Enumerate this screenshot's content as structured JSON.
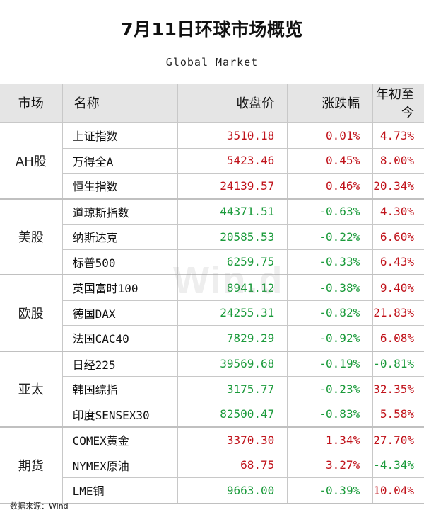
{
  "title": "7月11日环球市场概览",
  "subtitle": "Global Market",
  "headers": {
    "market": "市场",
    "name": "名称",
    "close": "收盘价",
    "change": "涨跌幅",
    "ytd": "年初至今"
  },
  "groups": [
    {
      "market": "AH股",
      "rows": [
        {
          "name": "上证指数",
          "close": "3510.18",
          "change": "0.01%",
          "ytd": "4.73%",
          "close_dir": "up",
          "change_dir": "up",
          "ytd_dir": "up"
        },
        {
          "name": "万得全A",
          "close": "5423.46",
          "change": "0.45%",
          "ytd": "8.00%",
          "close_dir": "up",
          "change_dir": "up",
          "ytd_dir": "up"
        },
        {
          "name": "恒生指数",
          "close": "24139.57",
          "change": "0.46%",
          "ytd": "20.34%",
          "close_dir": "up",
          "change_dir": "up",
          "ytd_dir": "up"
        }
      ]
    },
    {
      "market": "美股",
      "rows": [
        {
          "name": "道琼斯指数",
          "close": "44371.51",
          "change": "-0.63%",
          "ytd": "4.30%",
          "close_dir": "down",
          "change_dir": "down",
          "ytd_dir": "up"
        },
        {
          "name": "纳斯达克",
          "close": "20585.53",
          "change": "-0.22%",
          "ytd": "6.60%",
          "close_dir": "down",
          "change_dir": "down",
          "ytd_dir": "up"
        },
        {
          "name": "标普500",
          "close": "6259.75",
          "change": "-0.33%",
          "ytd": "6.43%",
          "close_dir": "down",
          "change_dir": "down",
          "ytd_dir": "up"
        }
      ]
    },
    {
      "market": "欧股",
      "rows": [
        {
          "name": "英国富时100",
          "close": "8941.12",
          "change": "-0.38%",
          "ytd": "9.40%",
          "close_dir": "down",
          "change_dir": "down",
          "ytd_dir": "up"
        },
        {
          "name": "德国DAX",
          "close": "24255.31",
          "change": "-0.82%",
          "ytd": "21.83%",
          "close_dir": "down",
          "change_dir": "down",
          "ytd_dir": "up"
        },
        {
          "name": "法国CAC40",
          "close": "7829.29",
          "change": "-0.92%",
          "ytd": "6.08%",
          "close_dir": "down",
          "change_dir": "down",
          "ytd_dir": "up"
        }
      ]
    },
    {
      "market": "亚太",
      "rows": [
        {
          "name": "日经225",
          "close": "39569.68",
          "change": "-0.19%",
          "ytd": "-0.81%",
          "close_dir": "down",
          "change_dir": "down",
          "ytd_dir": "down"
        },
        {
          "name": "韩国综指",
          "close": "3175.77",
          "change": "-0.23%",
          "ytd": "32.35%",
          "close_dir": "down",
          "change_dir": "down",
          "ytd_dir": "up"
        },
        {
          "name": "印度SENSEX30",
          "close": "82500.47",
          "change": "-0.83%",
          "ytd": "5.58%",
          "close_dir": "down",
          "change_dir": "down",
          "ytd_dir": "up"
        }
      ]
    },
    {
      "market": "期货",
      "rows": [
        {
          "name": "COMEX黄金",
          "close": "3370.30",
          "change": "1.34%",
          "ytd": "27.70%",
          "close_dir": "up",
          "change_dir": "up",
          "ytd_dir": "up"
        },
        {
          "name": "NYMEX原油",
          "close": "68.75",
          "change": "3.27%",
          "ytd": "-4.34%",
          "close_dir": "up",
          "change_dir": "up",
          "ytd_dir": "down"
        },
        {
          "name": "LME铜",
          "close": "9663.00",
          "change": "-0.39%",
          "ytd": "10.04%",
          "close_dir": "down",
          "change_dir": "down",
          "ytd_dir": "up"
        }
      ]
    }
  ],
  "colors": {
    "up": "#c0121a",
    "down": "#1a9a3a",
    "header_bg": "#e5e5e5"
  },
  "watermark": "Win.d",
  "source": "数据来源：Wind"
}
